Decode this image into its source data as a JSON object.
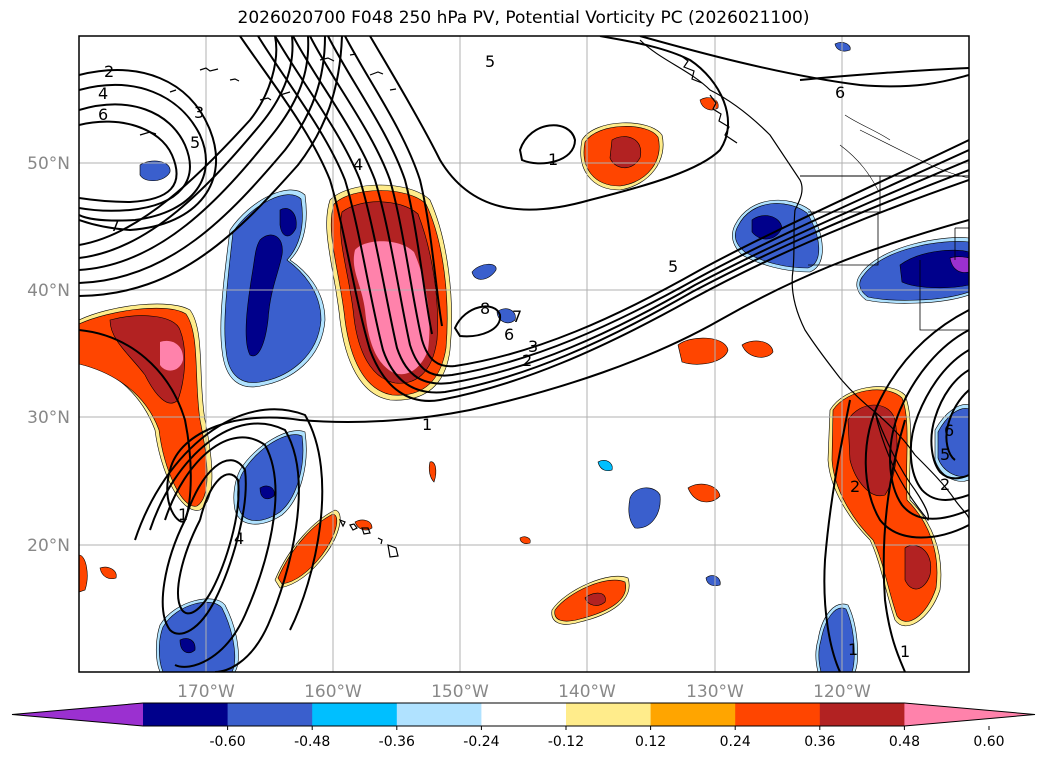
{
  "title": "2026020700 F048 250 hPa PV, Potential Vorticity PC (2026021100)",
  "map": {
    "latitude_labels": [
      "50°N",
      "40°N",
      "30°N",
      "20°N"
    ],
    "longitude_labels": [
      "170°W",
      "160°W",
      "150°W",
      "140°W",
      "130°W",
      "120°W"
    ],
    "gridlines": true,
    "coastlines": true,
    "contour_levels_labeled": [
      "1",
      "2",
      "3",
      "4",
      "5",
      "6",
      "7",
      "8"
    ]
  },
  "colorbar": {
    "extend": "both",
    "orientation": "horizontal",
    "ticks": [
      "-0.60",
      "-0.48",
      "-0.36",
      "-0.24",
      "-0.12",
      "0.12",
      "0.24",
      "0.36",
      "0.48",
      "0.60"
    ],
    "colors": [
      "#9b30d0",
      "#00008b",
      "#3a5fcd",
      "#00bfff",
      "#b0e2ff",
      "#ffffff",
      "#ffec8b",
      "#ffa500",
      "#ff4500",
      "#b22222",
      "#ff82ab"
    ]
  },
  "contour_labels": [
    {
      "t": "2"
    },
    {
      "t": "4"
    },
    {
      "t": "6"
    },
    {
      "t": "3"
    },
    {
      "t": "5"
    },
    {
      "t": "7"
    },
    {
      "t": "5"
    },
    {
      "t": "1"
    },
    {
      "t": "4"
    },
    {
      "t": "5"
    },
    {
      "t": "6"
    },
    {
      "t": "8"
    },
    {
      "t": "7"
    },
    {
      "t": "6"
    },
    {
      "t": "3"
    },
    {
      "t": "2"
    },
    {
      "t": "1"
    },
    {
      "t": "1"
    },
    {
      "t": "4"
    },
    {
      "t": "2"
    },
    {
      "t": "1"
    },
    {
      "t": "5"
    },
    {
      "t": "6"
    },
    {
      "t": "2"
    },
    {
      "t": "1"
    }
  ]
}
